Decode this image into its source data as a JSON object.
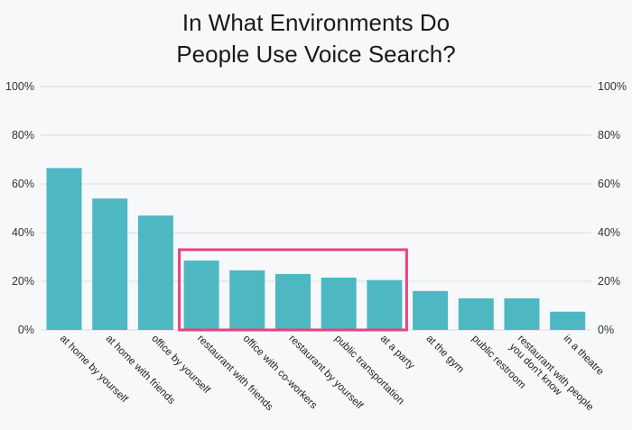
{
  "chart_data": {
    "type": "bar",
    "title_lines": [
      "In What Environments Do",
      "People Use Voice Search?"
    ],
    "categories": [
      [
        "at home by yourself"
      ],
      [
        "at home with friends"
      ],
      [
        "office by yourself"
      ],
      [
        "restaurant with friends"
      ],
      [
        "office with co-workers"
      ],
      [
        "restaurant by yourself"
      ],
      [
        "public transportation"
      ],
      [
        "at a party"
      ],
      [
        "at the gym"
      ],
      [
        "public restroom"
      ],
      [
        "restaurant with people",
        "you don't know"
      ],
      [
        "in a theatre"
      ]
    ],
    "values": [
      66.5,
      54,
      47,
      28.5,
      24.5,
      23,
      21.5,
      20.5,
      16,
      13,
      13,
      7.5
    ],
    "ylim": [
      0,
      100
    ],
    "yticks": [
      "0%",
      "20%",
      "40%",
      "60%",
      "80%",
      "100%"
    ],
    "ytick_values": [
      0,
      20,
      40,
      60,
      80,
      100
    ],
    "grid": true,
    "y_axis_labels_both_sides": true,
    "highlight": {
      "from_index": 3,
      "to_index": 7
    },
    "colors": {
      "bar": "#4db8c2",
      "grid": "#d9dce0",
      "highlight": "#e8417f",
      "text": "#1a1a1a"
    }
  }
}
